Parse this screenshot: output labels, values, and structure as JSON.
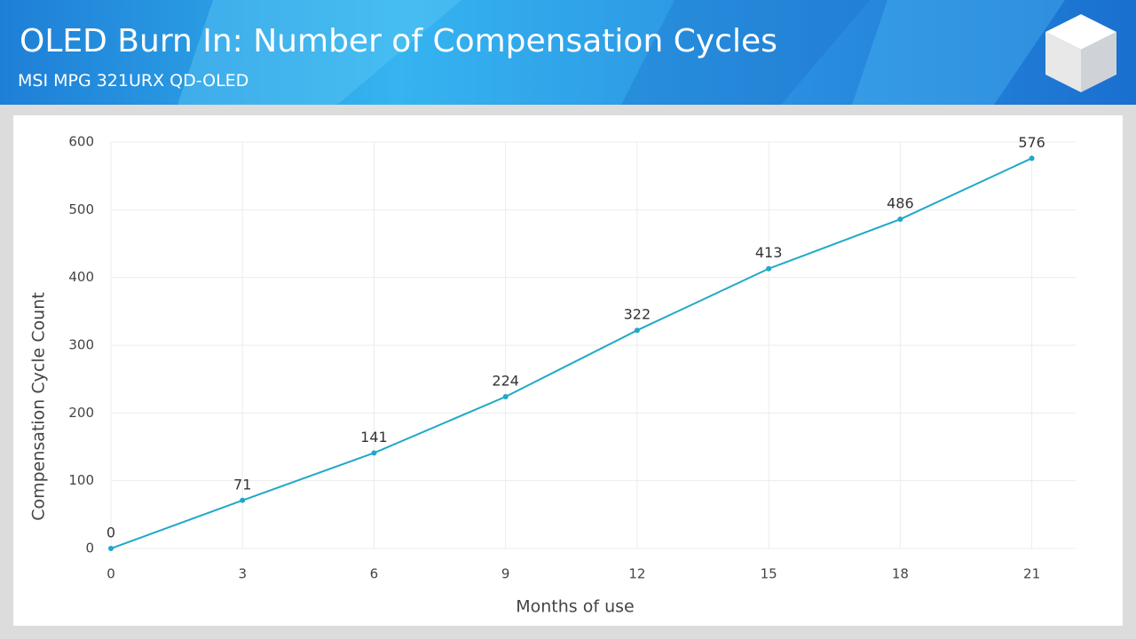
{
  "header": {
    "title": "OLED Burn In: Number of Compensation Cycles",
    "subtitle": "MSI MPG 321URX QD-OLED"
  },
  "chart_data": {
    "type": "line",
    "x": [
      0,
      3,
      6,
      9,
      12,
      15,
      18,
      21
    ],
    "series": [
      {
        "name": "Compensation Cycle Count",
        "color": "#1fa8c9",
        "values": [
          0,
          71,
          141,
          224,
          322,
          413,
          486,
          576
        ]
      }
    ],
    "xlabel": "Months of use",
    "ylabel": "Compensation Cycle Count",
    "xlim": [
      0,
      22
    ],
    "xticks": [
      0,
      3,
      6,
      9,
      12,
      15,
      18,
      21
    ],
    "ylim": [
      0,
      600
    ],
    "yticks": [
      0,
      100,
      200,
      300,
      400,
      500,
      600
    ],
    "grid": true,
    "data_labels": true
  }
}
